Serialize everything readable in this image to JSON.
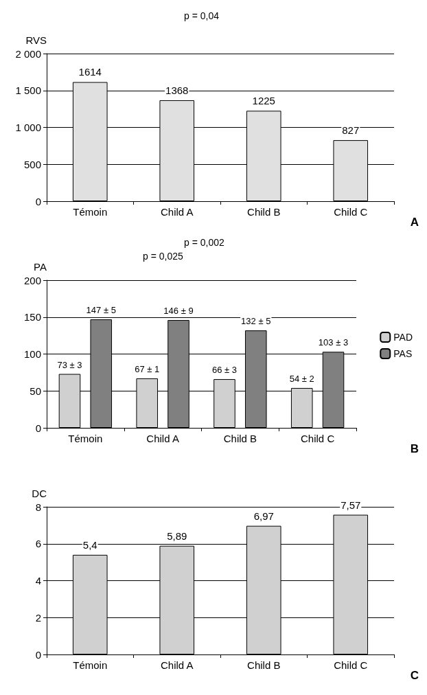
{
  "chart_data": [
    {
      "type": "bar",
      "ylabel": "RVS",
      "categories": [
        "Témoin",
        "Child A",
        "Child B",
        "Child C"
      ],
      "series": [
        {
          "color": "#e0e0e0",
          "values": [
            1614,
            1368,
            1225,
            827
          ]
        }
      ],
      "data_labels": true,
      "ylim": [
        0,
        2000
      ],
      "yticks": [
        0,
        500,
        {
          "value": 1000,
          "label": "1 000"
        },
        {
          "value": 1500,
          "label": "1 500"
        },
        {
          "value": 2000,
          "label": "2 000"
        }
      ],
      "grid": "y",
      "annotations": [
        "p = 0,04",
        "A"
      ]
    },
    {
      "type": "bar",
      "ylabel": "PA",
      "categories": [
        "Témoin",
        "Child A",
        "Child B",
        "Child C"
      ],
      "series": [
        {
          "name": "PAD",
          "color": "#d0d0d0",
          "values": [
            73,
            67,
            66,
            54
          ],
          "value_labels": [
            "73 ± 3",
            "67 ± 1",
            "66 ± 3",
            "54 ± 2"
          ]
        },
        {
          "name": "PAS",
          "color": "#808080",
          "values": [
            147,
            146,
            132,
            103
          ],
          "value_labels": [
            "147 ± 5",
            "146 ± 9",
            "132 ± 5",
            "103 ± 3"
          ]
        }
      ],
      "ylim": [
        0,
        200
      ],
      "yticks": [
        0,
        50,
        100,
        150,
        200
      ],
      "grid": "y",
      "legend": "right",
      "annotations": [
        "p = 0,002",
        "p = 0,025",
        "B"
      ]
    },
    {
      "type": "bar",
      "ylabel": "DC",
      "categories": [
        "Témoin",
        "Child A",
        "Child B",
        "Child C"
      ],
      "series": [
        {
          "color": "#d0d0d0",
          "values": [
            5.4,
            5.89,
            6.97,
            7.57
          ],
          "value_labels": [
            "5,4",
            "5,89",
            "6,97",
            "7,57"
          ]
        }
      ],
      "ylim": [
        0,
        8
      ],
      "yticks": [
        0,
        2,
        4,
        6,
        8
      ],
      "grid": "y",
      "annotations": [
        "C"
      ]
    }
  ]
}
